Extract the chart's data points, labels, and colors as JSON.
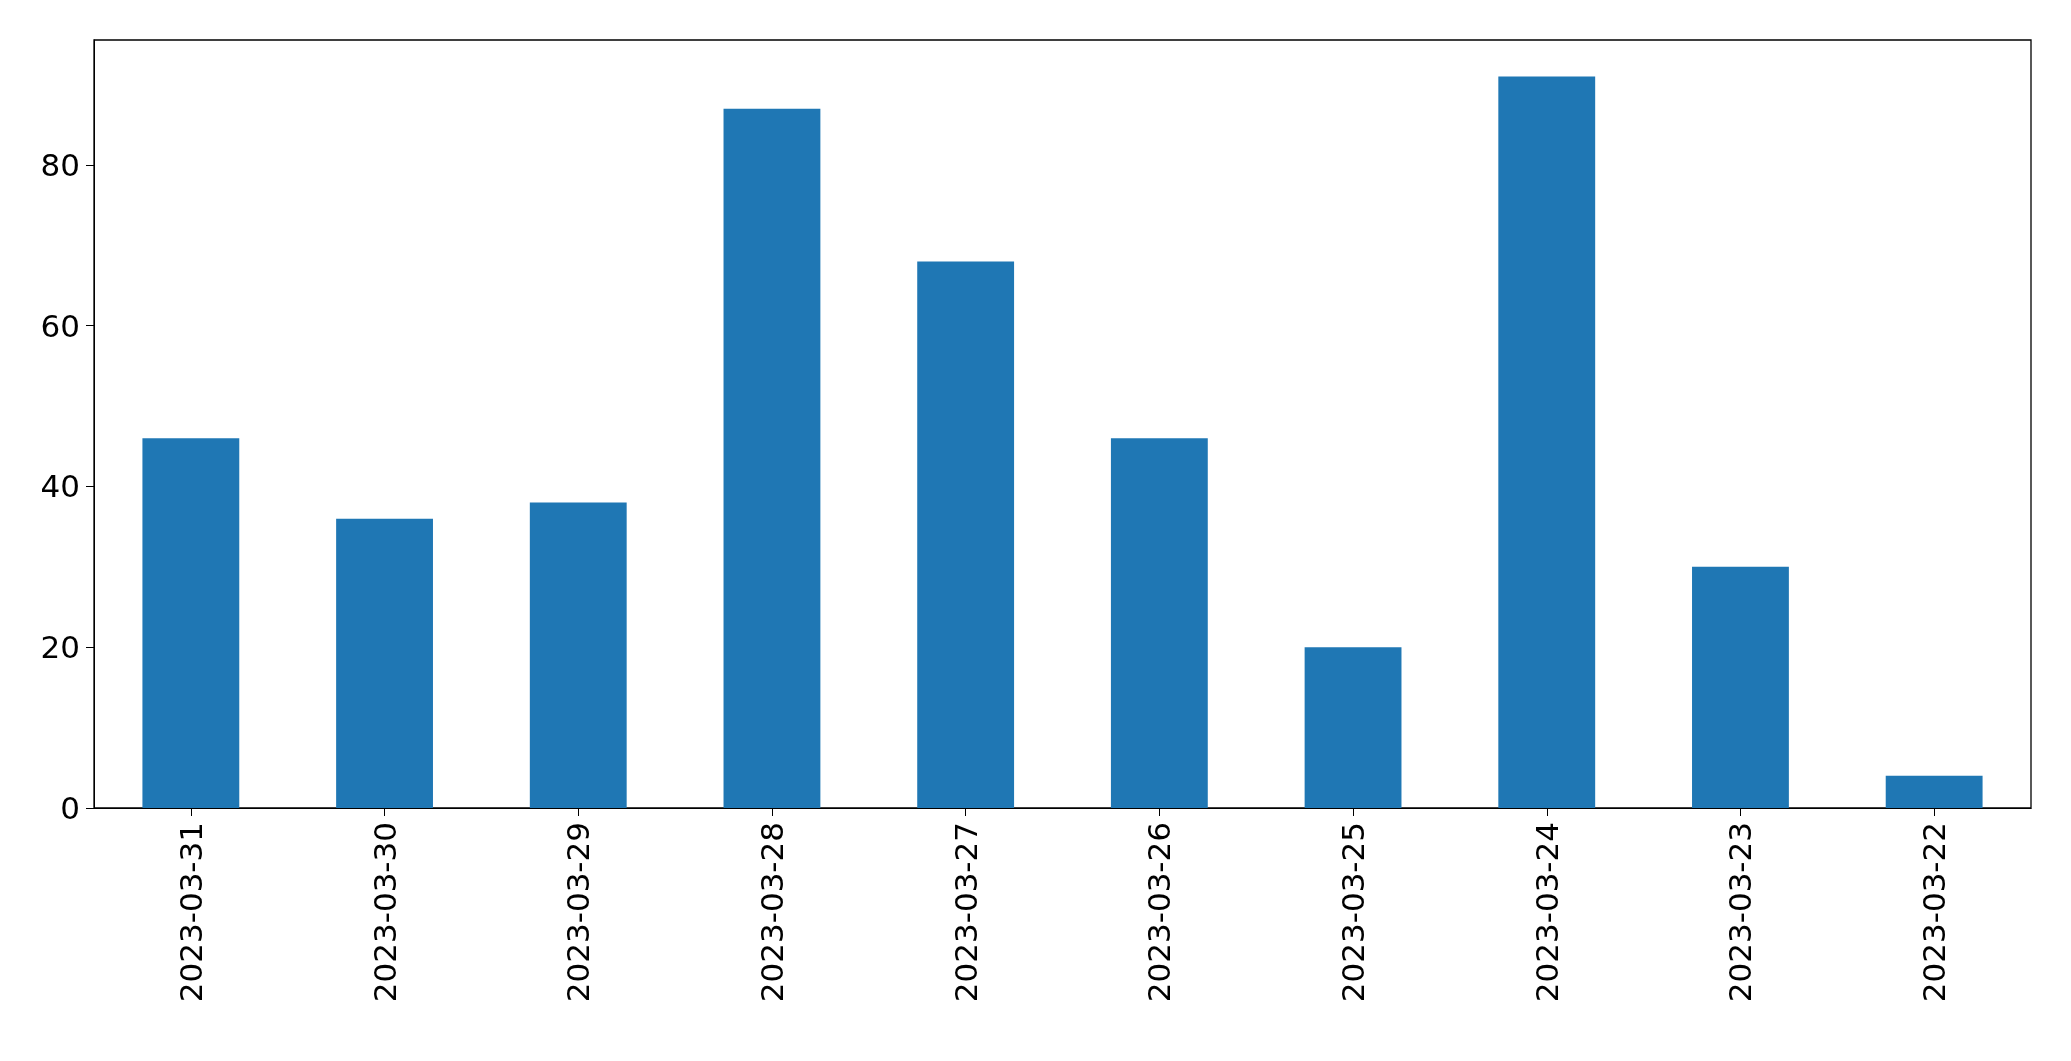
{
  "chart_data": {
    "type": "bar",
    "categories": [
      "2023-03-31",
      "2023-03-30",
      "2023-03-29",
      "2023-03-28",
      "2023-03-27",
      "2023-03-26",
      "2023-03-25",
      "2023-03-24",
      "2023-03-23",
      "2023-03-22"
    ],
    "values": [
      46,
      36,
      38,
      87,
      68,
      46,
      20,
      91,
      30,
      4
    ],
    "color": "#1f77b4",
    "ylim": [
      0,
      95.55
    ],
    "yticks": [
      0,
      20,
      40,
      60,
      80
    ],
    "grid": false
  }
}
